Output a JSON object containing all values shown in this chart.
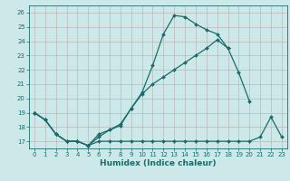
{
  "background_color": "#cce8e8",
  "grid_color": "#b8b8b8",
  "line_color": "#1a6b6b",
  "xlabel": "Humidex (Indice chaleur)",
  "xlim": [
    -0.5,
    23.5
  ],
  "ylim": [
    16.5,
    26.5
  ],
  "yticks": [
    17,
    18,
    19,
    20,
    21,
    22,
    23,
    24,
    25,
    26
  ],
  "xticks": [
    0,
    1,
    2,
    3,
    4,
    5,
    6,
    7,
    8,
    9,
    10,
    11,
    12,
    13,
    14,
    15,
    16,
    17,
    18,
    19,
    20,
    21,
    22,
    23
  ],
  "line1_x": [
    0,
    1,
    2,
    3,
    4,
    5,
    6,
    7,
    8,
    9,
    10,
    11,
    12,
    13,
    14,
    15,
    16,
    17,
    18
  ],
  "line1_y": [
    19.0,
    18.5,
    17.5,
    17.0,
    17.0,
    16.7,
    17.5,
    17.8,
    18.1,
    19.3,
    20.4,
    22.3,
    24.5,
    25.8,
    25.7,
    25.2,
    24.8,
    24.5,
    23.5
  ],
  "line2_x": [
    0,
    1,
    2,
    3,
    4,
    5,
    6,
    7,
    8,
    9,
    10,
    11,
    12,
    13,
    14,
    15,
    16,
    17,
    18,
    19,
    20,
    21,
    22,
    23
  ],
  "line2_y": [
    19.0,
    18.5,
    17.5,
    17.0,
    17.0,
    16.7,
    17.0,
    17.0,
    17.0,
    17.0,
    17.0,
    17.0,
    17.0,
    17.0,
    17.0,
    17.0,
    17.0,
    17.0,
    17.0,
    17.0,
    17.0,
    17.3,
    18.7,
    17.3
  ],
  "line3_x": [
    0,
    1,
    2,
    3,
    4,
    5,
    6,
    7,
    8,
    9,
    10,
    11,
    12,
    13,
    14,
    15,
    16,
    17,
    18,
    19,
    20
  ],
  "line3_y": [
    19.0,
    18.5,
    17.5,
    17.0,
    17.0,
    16.7,
    17.3,
    17.8,
    18.2,
    19.3,
    20.3,
    21.0,
    21.5,
    22.0,
    22.5,
    23.0,
    23.5,
    24.1,
    23.5,
    21.8,
    19.8
  ]
}
